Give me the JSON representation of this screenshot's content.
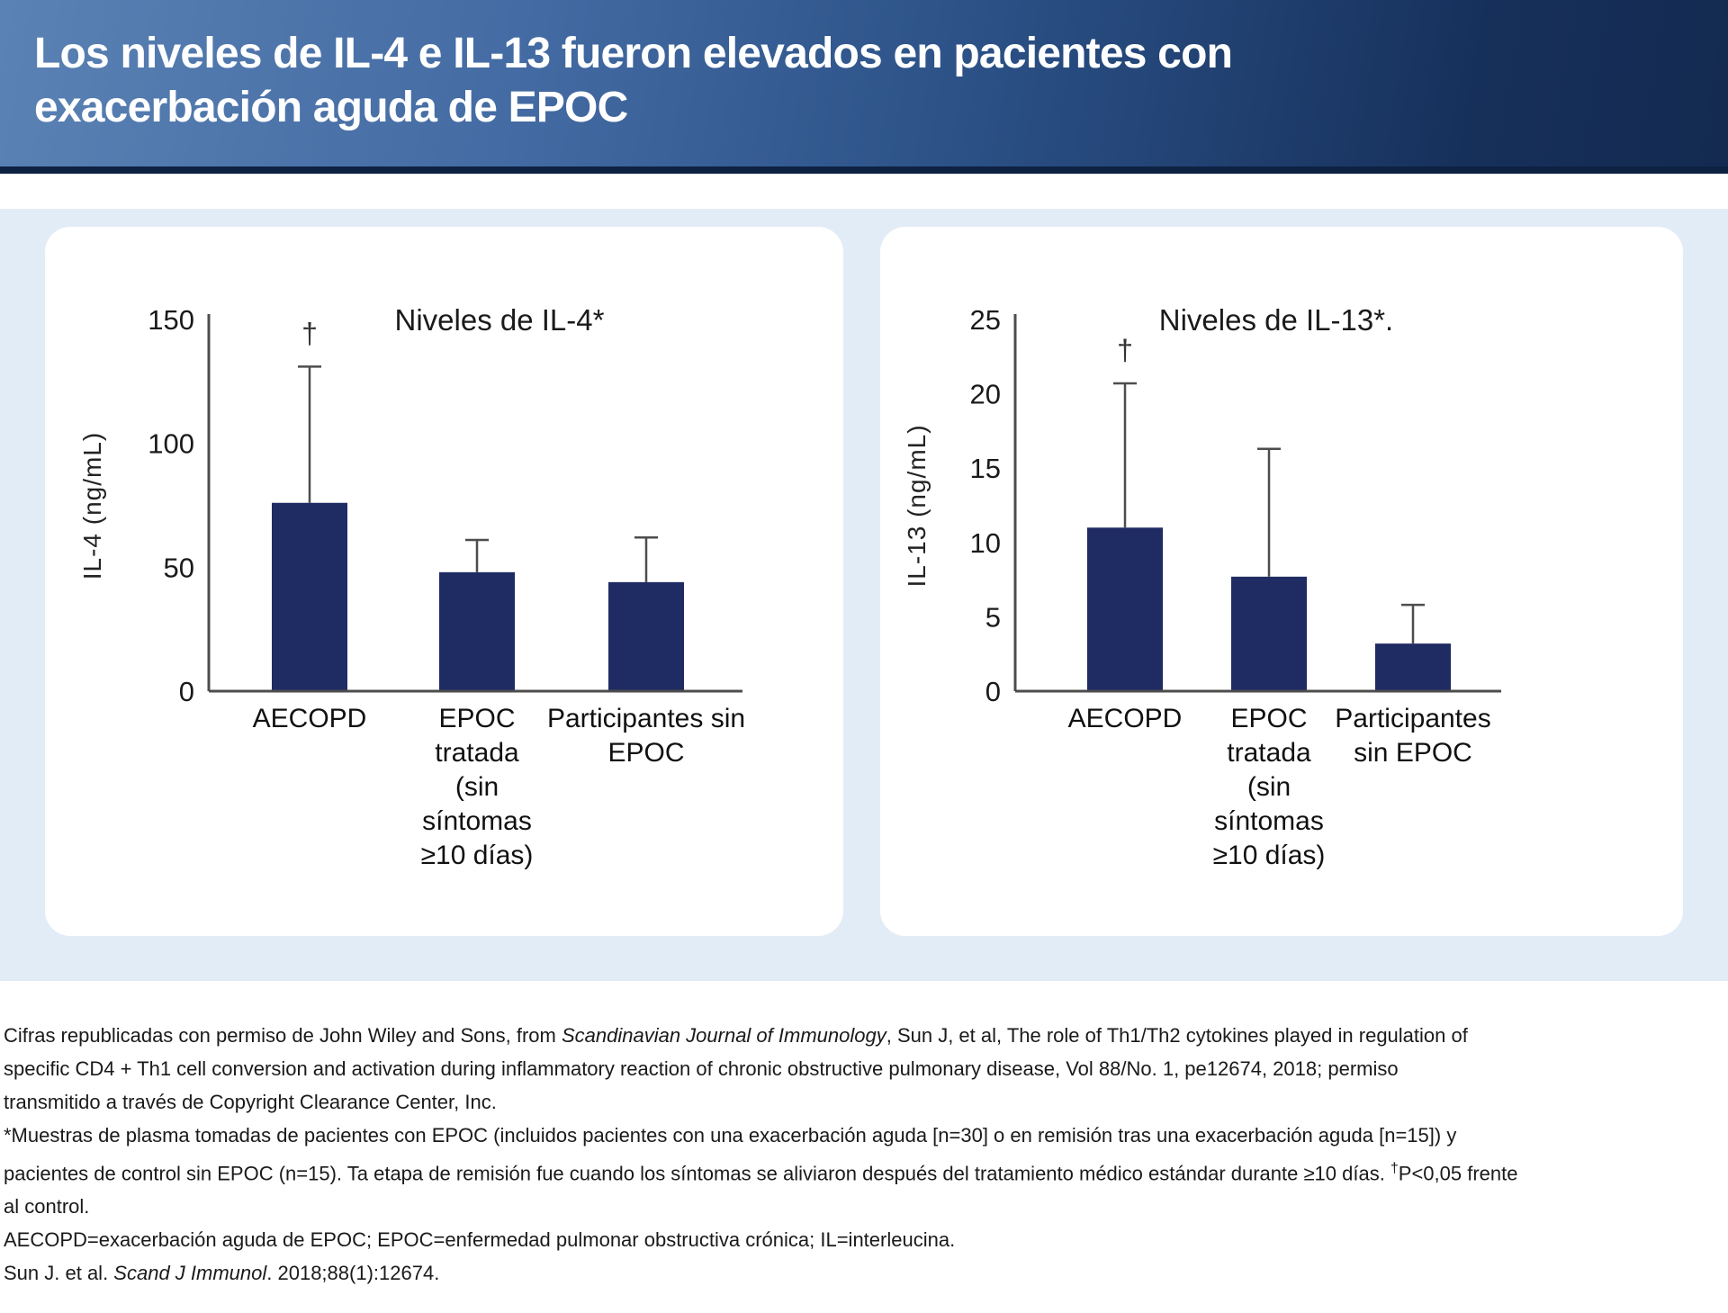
{
  "header": {
    "title_line1": "Los niveles de IL-4 e IL-13 fueron elevados en pacientes con",
    "title_line2": "exacerbación aguda de EPOC"
  },
  "colors": {
    "header_gradient_start": "#5a82b4",
    "header_gradient_end": "#142a50",
    "header_accent_bar": "#0d2142",
    "band_background": "#e2ecf6",
    "card_background": "#ffffff",
    "bar_fill": "#1f2b63",
    "axis_stroke": "#4d4d4d",
    "error_bar_stroke": "#4d4d4d",
    "text": "#1a1a1a"
  },
  "chart_data": [
    {
      "type": "bar",
      "title": "Niveles de IL-4*",
      "xlabel": "",
      "ylabel": "IL-4 (ng/mL)",
      "ylim": [
        0,
        150
      ],
      "yticks": [
        0,
        50,
        100,
        150
      ],
      "grid": false,
      "legend_position": "none",
      "categories": [
        "AECOPD",
        "EPOC tratada (sin síntomas ≥10 días)",
        "Participantes sin EPOC"
      ],
      "category_lines": [
        [
          "AECOPD"
        ],
        [
          "EPOC",
          "tratada",
          "(sin",
          "síntomas",
          "≥10 días)"
        ],
        [
          "Participantes sin",
          "EPOC"
        ]
      ],
      "values": [
        76,
        48,
        44
      ],
      "error_tops": [
        131,
        61,
        62
      ],
      "significance": {
        "bar_index": 0,
        "symbol": "†"
      },
      "bar_color": "#1f2b63"
    },
    {
      "type": "bar",
      "title": "Niveles de IL-13*.",
      "xlabel": "",
      "ylabel": "IL-13 (ng/mL)",
      "ylim": [
        0,
        25
      ],
      "yticks": [
        0,
        5,
        10,
        15,
        20,
        25
      ],
      "grid": false,
      "legend_position": "none",
      "categories": [
        "AECOPD",
        "EPOC tratada (sin síntomas ≥10 días)",
        "Participantes sin EPOC"
      ],
      "category_lines": [
        [
          "AECOPD"
        ],
        [
          "EPOC",
          "tratada",
          "(sin",
          "síntomas",
          "≥10 días)"
        ],
        [
          "Participantes",
          "sin EPOC"
        ]
      ],
      "values": [
        11,
        7.7,
        3.2
      ],
      "error_tops": [
        20.7,
        16.3,
        5.8
      ],
      "significance": {
        "bar_index": 0,
        "symbol": "†"
      },
      "bar_color": "#1f2b63"
    }
  ],
  "footnotes": {
    "lines": [
      {
        "segments": [
          {
            "text": "Cifras republicadas con permiso de John Wiley and Sons, from "
          },
          {
            "text": "Scandinavian Journal of Immunology",
            "italic": true
          },
          {
            "text": ", Sun J, et al, The role of Th1/Th2 cytokines played in regulation of"
          }
        ]
      },
      {
        "segments": [
          {
            "text": "specific CD4 + Th1 cell conversion and activation during inflammatory reaction of chronic obstructive pulmonary disease, Vol 88/No. 1, pe12674, 2018; permiso"
          }
        ]
      },
      {
        "segments": [
          {
            "text": "transmitido a través de Copyright Clearance Center, Inc."
          }
        ]
      },
      {
        "segments": [
          {
            "text": "*Muestras de plasma tomadas de pacientes con EPOC (incluidos pacientes con una exacerbación aguda [n=30] o en remisión tras una exacerbación aguda [n=15]) y"
          }
        ]
      },
      {
        "segments": [
          {
            "text": "pacientes de control sin EPOC (n=15). Ta etapa de remisión fue cuando los síntomas se aliviaron después del tratamiento médico estándar durante ≥10 días. "
          },
          {
            "text": "†",
            "sup": true
          },
          {
            "text": "P<0,05 frente"
          }
        ]
      },
      {
        "segments": [
          {
            "text": "al control."
          }
        ]
      },
      {
        "segments": [
          {
            "text": "AECOPD=exacerbación aguda de EPOC; EPOC=enfermedad pulmonar obstructiva crónica; IL=interleucina."
          }
        ]
      },
      {
        "segments": [
          {
            "text": "Sun J. et al. "
          },
          {
            "text": "Scand J Immunol",
            "italic": true
          },
          {
            "text": ". 2018;88(1):12674."
          }
        ]
      }
    ]
  }
}
